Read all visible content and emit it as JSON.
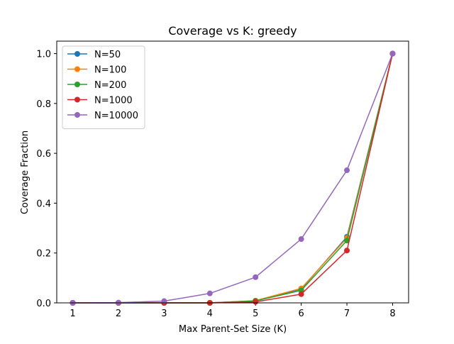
{
  "chart_data": {
    "type": "line",
    "title": "Coverage vs K: greedy",
    "xlabel": "Max Parent-Set Size (K)",
    "ylabel": "Coverage Fraction",
    "xlim": [
      0.65,
      8.35
    ],
    "ylim": [
      0,
      1.05
    ],
    "x": [
      1,
      2,
      3,
      4,
      5,
      6,
      7,
      8
    ],
    "xticks": [
      1,
      2,
      3,
      4,
      5,
      6,
      7,
      8
    ],
    "xtick_labels": [
      "1",
      "2",
      "3",
      "4",
      "5",
      "6",
      "7",
      "8"
    ],
    "yticks": [
      0,
      0.2,
      0.4,
      0.6,
      0.8,
      1.0
    ],
    "ytick_labels": [
      "0.0",
      "0.2",
      "0.4",
      "0.6",
      "0.8",
      "1.0"
    ],
    "grid": false,
    "legend_position": "top-left",
    "series": [
      {
        "name": "N=50",
        "color": "#1f77b4",
        "values": [
          0,
          0,
          0,
          0,
          0.008,
          0.055,
          0.265,
          1.0
        ]
      },
      {
        "name": "N=100",
        "color": "#ff7f0e",
        "values": [
          0,
          0,
          0,
          0,
          0.009,
          0.058,
          0.26,
          1.0
        ]
      },
      {
        "name": "N=200",
        "color": "#2ca02c",
        "values": [
          0,
          0,
          0,
          0,
          0.008,
          0.05,
          0.25,
          1.0
        ]
      },
      {
        "name": "N=1000",
        "color": "#d62728",
        "values": [
          0,
          0,
          0,
          0,
          0.004,
          0.035,
          0.21,
          1.0
        ]
      },
      {
        "name": "N=10000",
        "color": "#9467bd",
        "values": [
          0,
          0.001,
          0.007,
          0.038,
          0.103,
          0.256,
          0.532,
          1.0
        ]
      }
    ]
  }
}
